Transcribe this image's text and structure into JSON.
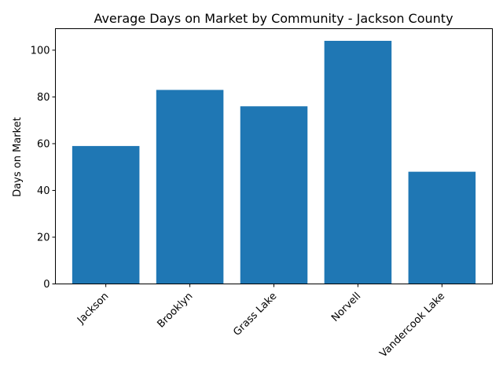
{
  "chart_data": {
    "type": "bar",
    "title": "Average Days on Market by Community - Jackson County",
    "xlabel": "",
    "ylabel": "Days on Market",
    "categories": [
      "Jackson",
      "Brooklyn",
      "Grass Lake",
      "Norvell",
      "Vandercook Lake"
    ],
    "values": [
      59,
      83,
      76,
      104,
      48
    ],
    "ylim": [
      0,
      109.2
    ],
    "yticks": [
      0,
      20,
      40,
      60,
      80,
      100
    ],
    "bar_color": "#1f77b4",
    "grid": false,
    "xtick_rotation": 45
  }
}
